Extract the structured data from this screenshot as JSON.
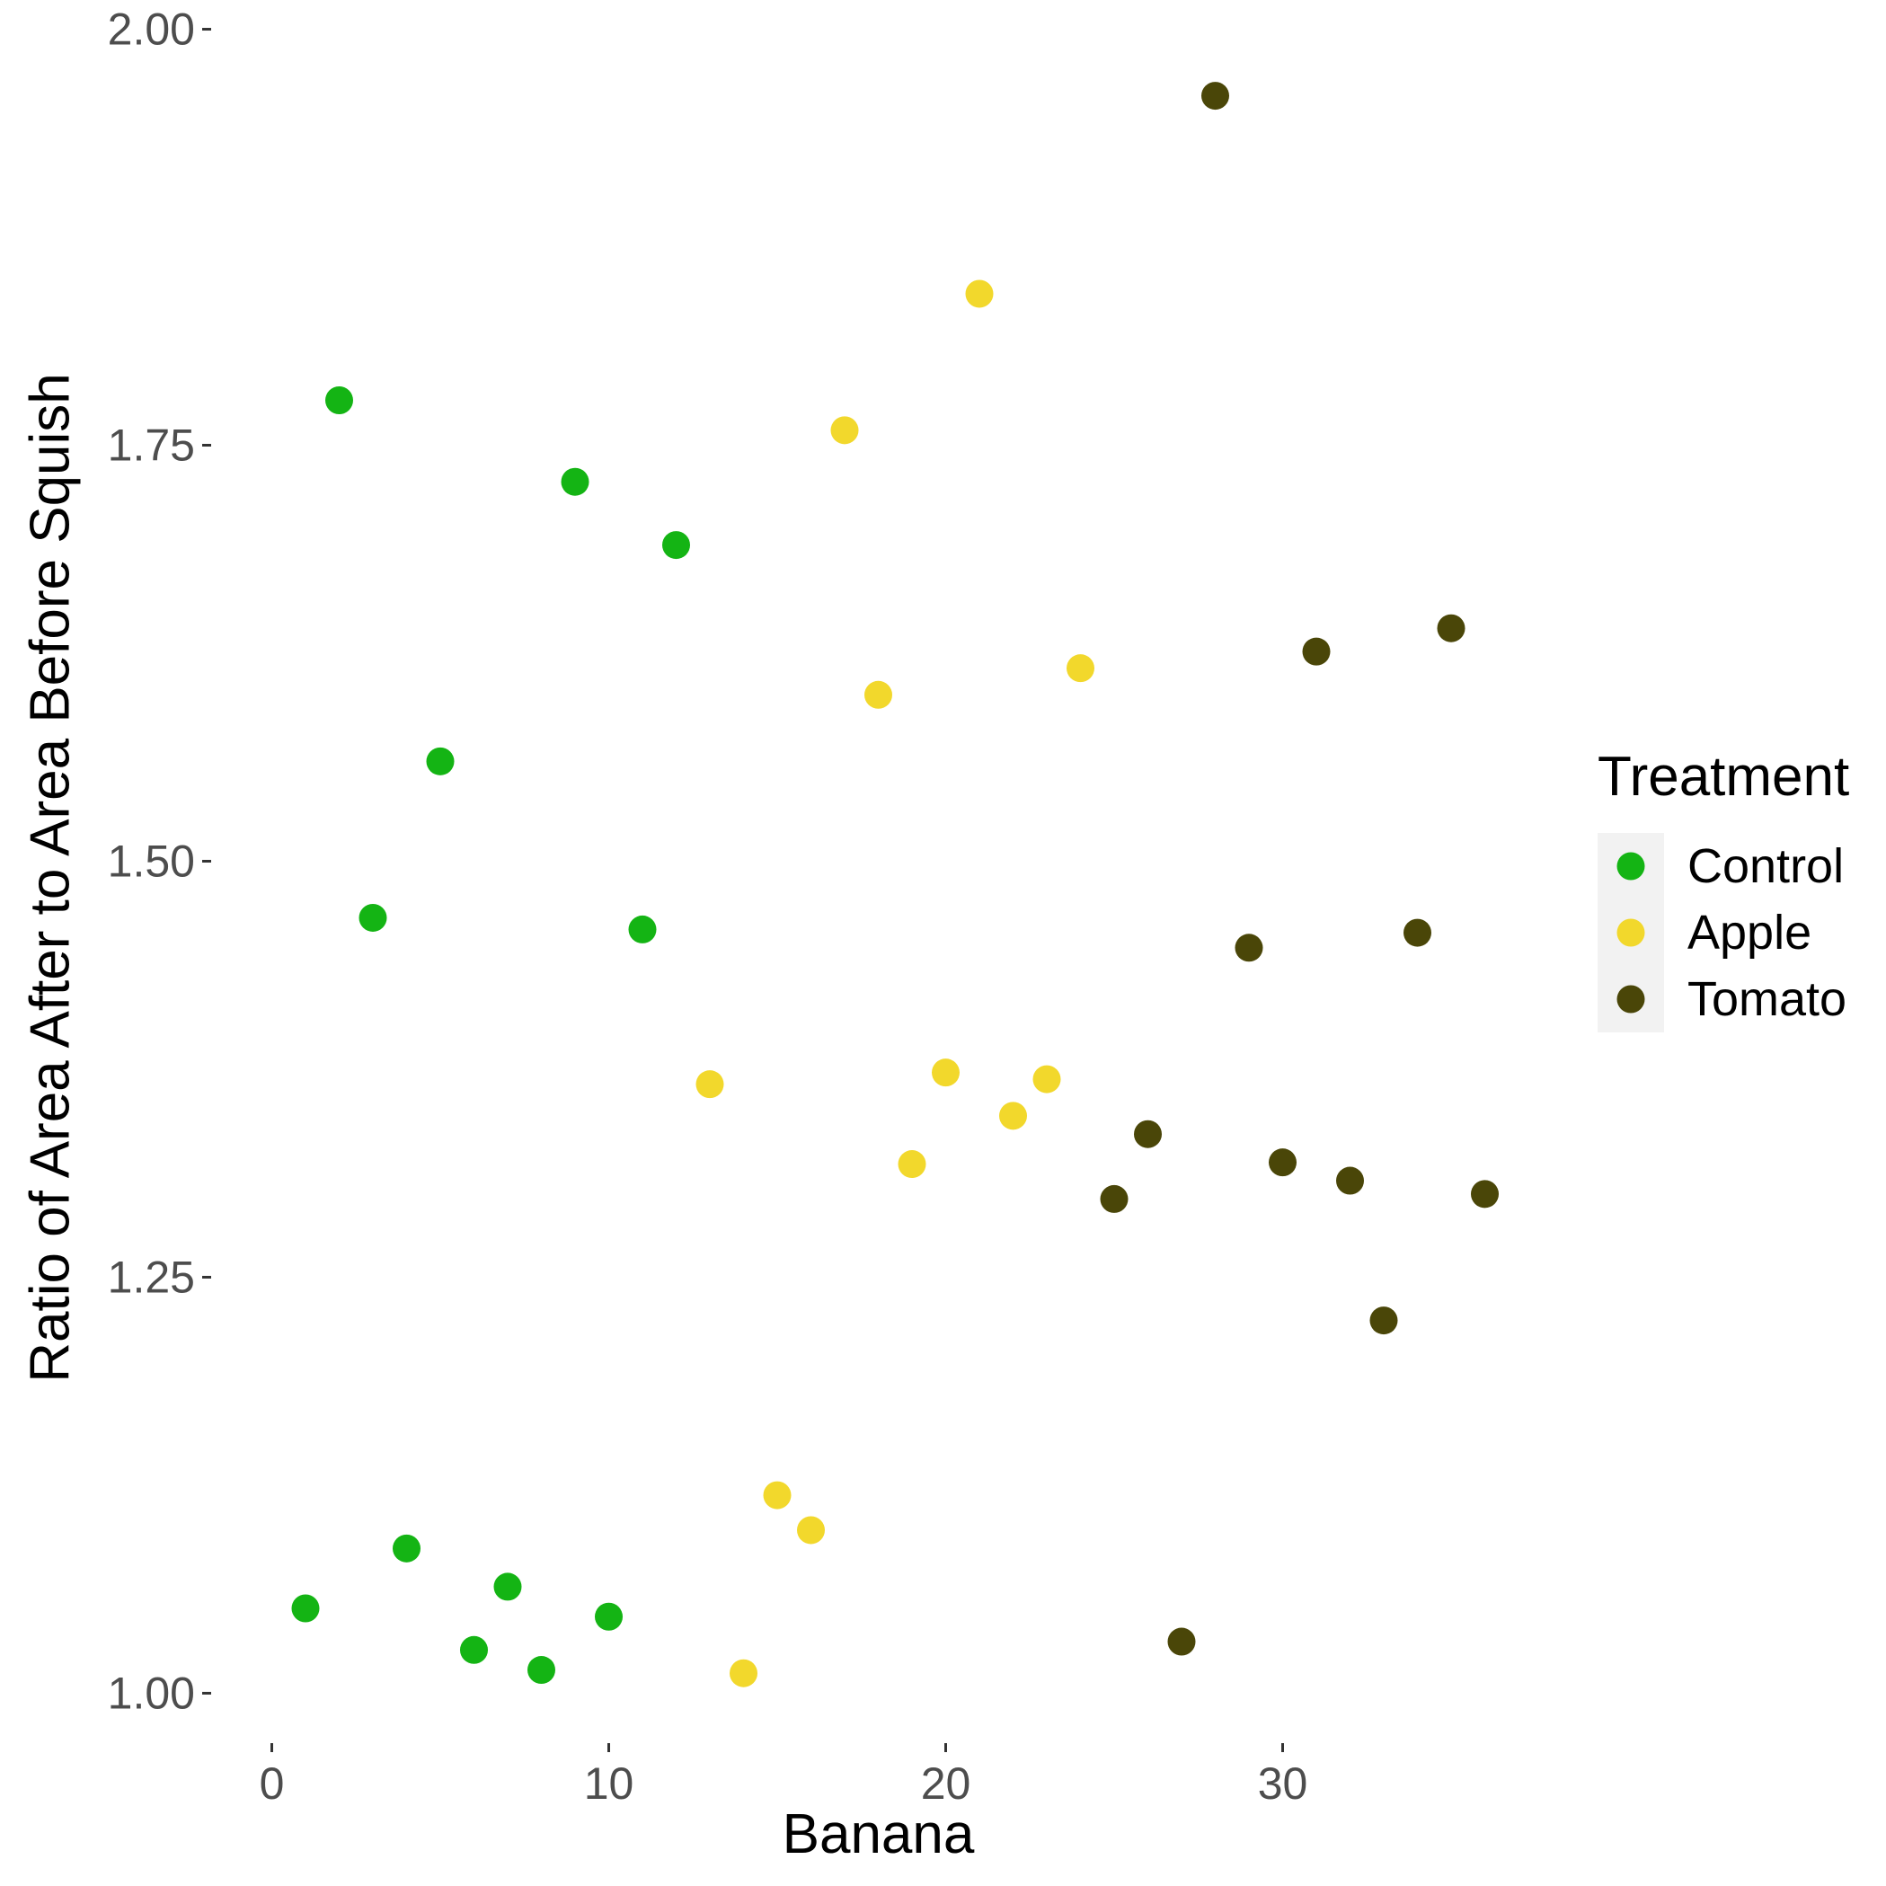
{
  "chart_data": {
    "type": "scatter",
    "title": "",
    "xlabel": "Banana",
    "ylabel": "Ratio of Area After to Area Before Squish",
    "xlim": [
      -1.8,
      37.8
    ],
    "ylim": [
      0.97,
      2.01
    ],
    "x_ticks": [
      0,
      10,
      20,
      30
    ],
    "x_tick_labels": [
      "0",
      "10",
      "20",
      "30"
    ],
    "y_ticks": [
      1.0,
      1.25,
      1.5,
      1.75,
      2.0
    ],
    "y_tick_labels": [
      "1.00",
      "1.25",
      "1.50",
      "1.75",
      "2.00"
    ],
    "grid": false,
    "legend": {
      "title": "Treatment",
      "position": "right"
    },
    "series": [
      {
        "name": "Control",
        "color": "#14b414",
        "points": [
          {
            "x": 1,
            "y": 1.051
          },
          {
            "x": 2,
            "y": 1.777
          },
          {
            "x": 3,
            "y": 1.466
          },
          {
            "x": 4,
            "y": 1.087
          },
          {
            "x": 5,
            "y": 1.56
          },
          {
            "x": 6,
            "y": 1.026
          },
          {
            "x": 7,
            "y": 1.064
          },
          {
            "x": 8,
            "y": 1.014
          },
          {
            "x": 9,
            "y": 1.728
          },
          {
            "x": 10,
            "y": 1.046
          },
          {
            "x": 11,
            "y": 1.459
          },
          {
            "x": 12,
            "y": 1.69
          }
        ]
      },
      {
        "name": "Apple",
        "color": "#f2d82c",
        "points": [
          {
            "x": 13,
            "y": 1.366
          },
          {
            "x": 14,
            "y": 1.012
          },
          {
            "x": 15,
            "y": 1.119
          },
          {
            "x": 16,
            "y": 1.098
          },
          {
            "x": 17,
            "y": 1.759
          },
          {
            "x": 18,
            "y": 1.6
          },
          {
            "x": 19,
            "y": 1.318
          },
          {
            "x": 20,
            "y": 1.373
          },
          {
            "x": 21,
            "y": 1.841
          },
          {
            "x": 22,
            "y": 1.347
          },
          {
            "x": 23,
            "y": 1.369
          },
          {
            "x": 24,
            "y": 1.616
          }
        ]
      },
      {
        "name": "Tomato",
        "color": "#4a4608",
        "points": [
          {
            "x": 25,
            "y": 1.297
          },
          {
            "x": 26,
            "y": 1.336
          },
          {
            "x": 27,
            "y": 1.031
          },
          {
            "x": 28,
            "y": 1.96
          },
          {
            "x": 29,
            "y": 1.448
          },
          {
            "x": 30,
            "y": 1.319
          },
          {
            "x": 31,
            "y": 1.626
          },
          {
            "x": 32,
            "y": 1.308
          },
          {
            "x": 33,
            "y": 1.224
          },
          {
            "x": 34,
            "y": 1.457
          },
          {
            "x": 35,
            "y": 1.64
          },
          {
            "x": 36,
            "y": 1.3
          }
        ]
      }
    ]
  }
}
